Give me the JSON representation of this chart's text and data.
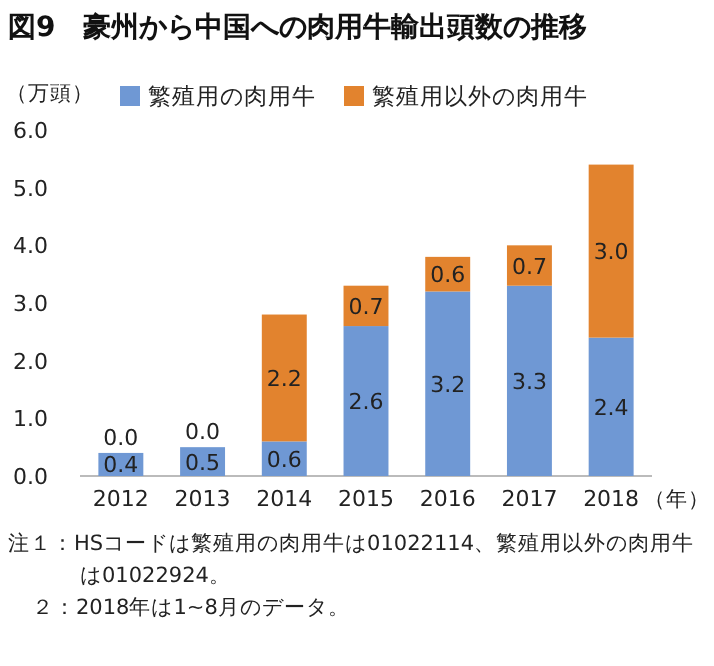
{
  "chart_data": {
    "type": "bar",
    "stacked": true,
    "title": "図9　豪州から中国への肉用牛輸出頭数の推移",
    "ylabel": "（万頭）",
    "xlabel": "（年）",
    "categories": [
      "2012",
      "2013",
      "2014",
      "2015",
      "2016",
      "2017",
      "2018"
    ],
    "series": [
      {
        "name": "繁殖用の肉用牛",
        "color": "#6f98d4",
        "values": [
          0.4,
          0.5,
          0.6,
          2.6,
          3.2,
          3.3,
          2.4
        ],
        "value_labels": [
          "0.4",
          "0.5",
          "0.6",
          "2.6",
          "3.2",
          "3.3",
          "2.4"
        ]
      },
      {
        "name": "繁殖用以外の肉用牛",
        "color": "#e2832e",
        "values": [
          0.0,
          0.0,
          2.2,
          0.7,
          0.6,
          0.7,
          3.0
        ],
        "value_labels": [
          "0.0",
          "0.0",
          "2.2",
          "0.7",
          "0.6",
          "0.7",
          "3.0"
        ]
      }
    ],
    "ylim": [
      0,
      6
    ],
    "yticks": [
      {
        "value": 0,
        "label": "0.0"
      },
      {
        "value": 1,
        "label": "1.0"
      },
      {
        "value": 2,
        "label": "2.0"
      },
      {
        "value": 3,
        "label": "3.0"
      },
      {
        "value": 4,
        "label": "4.0"
      },
      {
        "value": 5,
        "label": "5.0"
      },
      {
        "value": 6,
        "label": "6.0"
      }
    ],
    "legend": "top",
    "grid": false,
    "annotations": [
      "注１：HSコードは繁殖用の肉用牛は01022114、繁殖用以外の肉用牛は01022924。",
      "２：2018年は1~8月のデータ。"
    ]
  }
}
